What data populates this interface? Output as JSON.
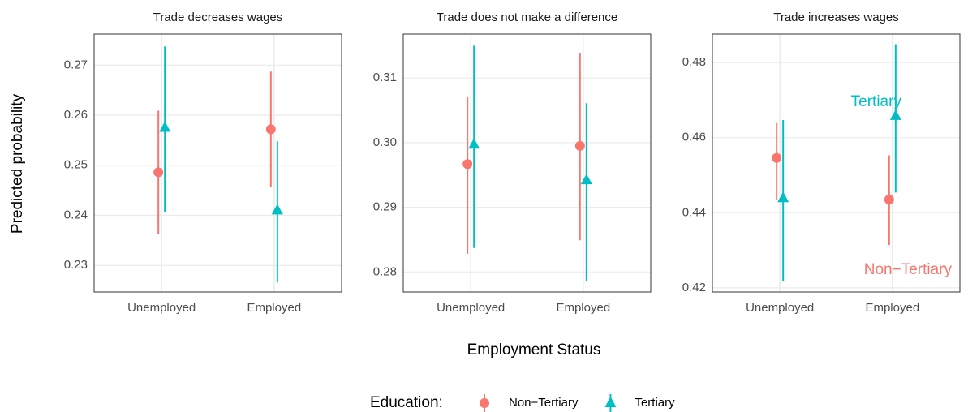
{
  "chart_data": {
    "type": "pointrange",
    "xlabel": "Employment Status",
    "ylabel": "Predicted probability",
    "legend_title": "Education:",
    "legend_position": "bottom",
    "grid": true,
    "categories": [
      "Unemployed",
      "Employed"
    ],
    "series": [
      {
        "name": "Non−Tertiary",
        "color": "#F8766D",
        "marker": "circle"
      },
      {
        "name": "Tertiary",
        "color": "#00BFC4",
        "marker": "triangle"
      }
    ],
    "panels": [
      {
        "title": "Trade decreases wages",
        "ylim": [
          0.2247,
          0.2762
        ],
        "yticks": [
          0.23,
          0.24,
          0.25,
          0.26,
          0.27
        ],
        "series": [
          {
            "values": [
              0.2486,
              0.2572
            ],
            "lower": [
              0.2362,
              0.2457
            ],
            "upper": [
              0.2609,
              0.2687
            ]
          },
          {
            "values": [
              0.2575,
              0.241
            ],
            "lower": [
              0.2407,
              0.2266
            ],
            "upper": [
              0.2737,
              0.2548
            ]
          }
        ]
      },
      {
        "title": "Trade does not make a difference",
        "ylim": [
          0.2769,
          0.3168
        ],
        "yticks": [
          0.28,
          0.29,
          {
            "value": 0.3,
            "label": "0.30"
          },
          0.31
        ],
        "series": [
          {
            "values": [
              0.2967,
              0.2995
            ],
            "lower": [
              0.2828,
              0.2849
            ],
            "upper": [
              0.3071,
              0.3139
            ]
          },
          {
            "values": [
              0.2997,
              0.2942
            ],
            "lower": [
              0.2837,
              0.2786
            ],
            "upper": [
              0.315,
              0.3061
            ]
          }
        ]
      },
      {
        "title": "Trade increases wages",
        "ylim": [
          0.4189,
          0.4876
        ],
        "yticks": [
          0.42,
          0.44,
          0.46,
          0.48
        ],
        "series": [
          {
            "values": [
              0.4546,
              0.4435
            ],
            "lower": [
              0.4435,
              0.4314
            ],
            "upper": [
              0.4639,
              0.4553
            ]
          },
          {
            "values": [
              0.4439,
              0.4658
            ],
            "lower": [
              0.4217,
              0.4454
            ],
            "upper": [
              0.4647,
              0.4849
            ]
          }
        ],
        "annotations": [
          "Non−Tertiary",
          "Tertiary"
        ]
      }
    ]
  }
}
